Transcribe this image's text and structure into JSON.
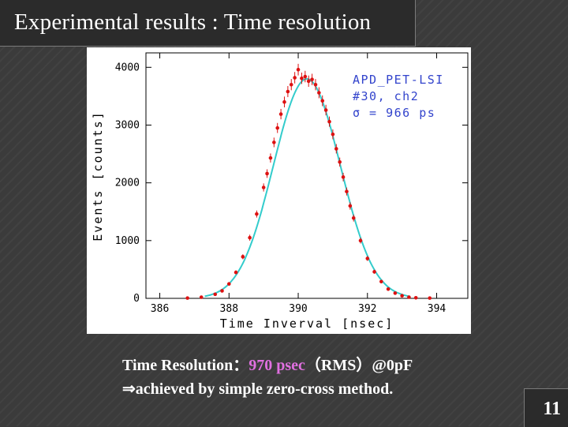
{
  "slide": {
    "title": "Experimental results : Time resolution",
    "caption_line1_prefix": "Time Resolution：",
    "caption_line1_highlight": "970 psec",
    "caption_line1_suffix": "（RMS）@0pF",
    "caption_line2": "⇒achieved by simple zero-cross method.",
    "page_number": "11",
    "highlight_color": "#e070e0"
  },
  "chart_data": {
    "type": "scatter",
    "title": "",
    "xlabel": "Time Inverval [nsec]",
    "ylabel": "Events [counts]",
    "xlim": [
      385.6,
      394.9
    ],
    "ylim": [
      0,
      4250
    ],
    "xticks": [
      386,
      388,
      390,
      392,
      394
    ],
    "yticks": [
      0,
      1000,
      2000,
      3000,
      4000
    ],
    "grid": false,
    "annotation_lines": [
      "APD_PET-LSI",
      "#30, ch2",
      "σ = 966 ps"
    ],
    "colors": {
      "data": "#dd1111",
      "fit": "#33cccc",
      "annotation": "#3344cc"
    },
    "series": [
      {
        "kind": "points",
        "x": [
          386.8,
          387.2,
          387.6,
          387.8,
          388.0,
          388.2,
          388.4,
          388.6,
          388.8,
          389.0,
          389.1,
          389.2,
          389.3,
          389.4,
          389.5,
          389.6,
          389.7,
          389.8,
          389.9,
          390.0,
          390.1,
          390.2,
          390.3,
          390.4,
          390.5,
          390.6,
          390.7,
          390.8,
          390.9,
          391.0,
          391.1,
          391.2,
          391.3,
          391.4,
          391.5,
          391.6,
          391.8,
          392.0,
          392.2,
          392.4,
          392.6,
          392.8,
          393.0,
          393.2,
          393.4,
          393.8
        ],
        "y": [
          5,
          20,
          70,
          130,
          250,
          450,
          720,
          1050,
          1460,
          1920,
          2160,
          2430,
          2700,
          2950,
          3190,
          3400,
          3580,
          3700,
          3820,
          3960,
          3810,
          3840,
          3760,
          3790,
          3700,
          3560,
          3420,
          3260,
          3060,
          2840,
          2590,
          2360,
          2100,
          1850,
          1600,
          1390,
          1000,
          690,
          460,
          290,
          160,
          90,
          45,
          20,
          10,
          5
        ]
      },
      {
        "kind": "fit",
        "model": "gaussian",
        "mean": 390.25,
        "sigma": 0.966,
        "amplitude": 3800
      }
    ]
  }
}
